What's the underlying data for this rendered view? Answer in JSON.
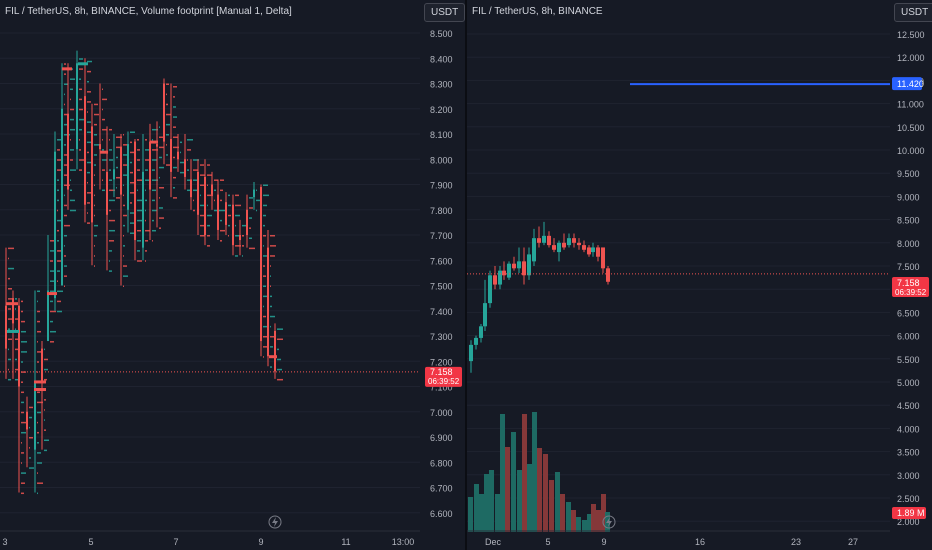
{
  "left": {
    "legend": "FIL / TetherUS, 8h, BINANCE, Volume footprint [Manual 1, Delta]",
    "currency": "USDT",
    "price_ticks": [
      "8.500",
      "8.400",
      "8.300",
      "8.200",
      "8.100",
      "8.000",
      "7.900",
      "7.800",
      "7.700",
      "7.600",
      "7.500",
      "7.400",
      "7.300",
      "7.200",
      "7.100",
      "7.000",
      "6.900",
      "6.800",
      "6.700",
      "6.600"
    ],
    "time_ticks": [
      "3",
      "5",
      "7",
      "9",
      "11",
      "13:00"
    ],
    "last_price": "7.158",
    "countdown": "06:39:52"
  },
  "right": {
    "legend": "FIL / TetherUS, 8h, BINANCE",
    "currency": "USDT",
    "price_ticks": [
      "12.500",
      "12.000",
      "11.500",
      "11.000",
      "10.500",
      "10.000",
      "9.500",
      "9.000",
      "8.500",
      "8.000",
      "7.500",
      "7.000",
      "6.500",
      "6.000",
      "5.500",
      "5.000",
      "4.500",
      "4.000",
      "3.500",
      "3.000",
      "2.500",
      "2.000"
    ],
    "time_ticks": [
      "Dec",
      "5",
      "9",
      "16",
      "23",
      "27"
    ],
    "hline_price": "11.420",
    "last_price": "7.158",
    "countdown": "06:39:52",
    "volume_label": "1.89 M"
  },
  "colors": {
    "up": "#26a69a",
    "down": "#ef5350",
    "hline": "#2962ff",
    "background": "#161a25"
  }
}
